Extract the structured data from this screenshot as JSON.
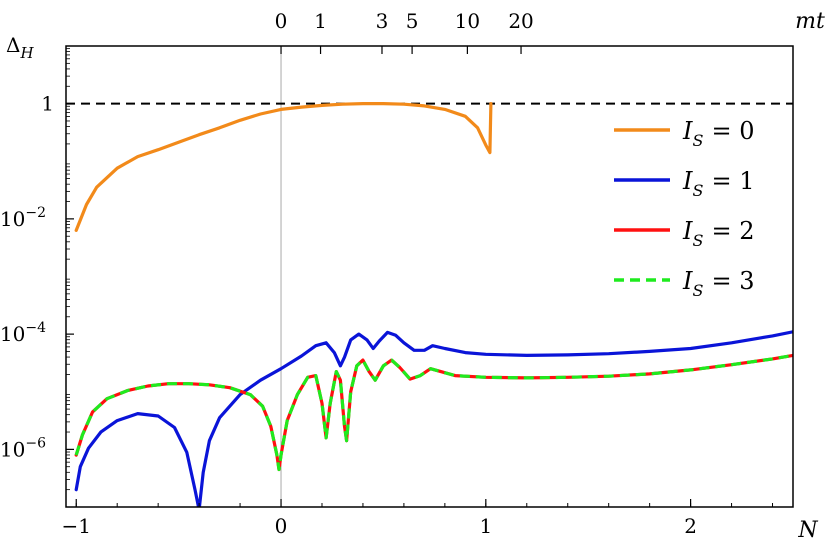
{
  "chart_data": {
    "type": "line",
    "title": "",
    "xlabel": "N",
    "ylabel": "Δ_H",
    "top_axis_label": "mt",
    "xlim": [
      -1.05,
      2.5
    ],
    "ylim_log10": [
      -7,
      1
    ],
    "y_scale": "log",
    "grid": false,
    "legend_position": "top-right",
    "x_ticks": [
      {
        "value": -1,
        "label": "−1"
      },
      {
        "value": 0,
        "label": "0"
      },
      {
        "value": 1,
        "label": "1"
      },
      {
        "value": 2,
        "label": "2"
      }
    ],
    "y_ticks": [
      {
        "exp": 0,
        "label": "1"
      },
      {
        "exp": -2,
        "label": "10",
        "sup": "−2"
      },
      {
        "exp": -4,
        "label": "10",
        "sup": "−4"
      },
      {
        "exp": -6,
        "label": "10",
        "sup": "−6"
      }
    ],
    "top_ticks": [
      {
        "N": 0.0,
        "label": "0"
      },
      {
        "N": 0.193,
        "label": "1"
      },
      {
        "N": 0.493,
        "label": "3"
      },
      {
        "N": 0.64,
        "label": "5"
      },
      {
        "N": 0.91,
        "label": "10"
      },
      {
        "N": 1.172,
        "label": "20"
      }
    ],
    "reference_line": {
      "y_log10": 0,
      "style": "dashed"
    },
    "series": [
      {
        "name": "I_S = 0",
        "legend_label": "I",
        "legend_sub": "S",
        "legend_value": "= 0",
        "color": "#f28a1a",
        "style": "solid",
        "points": [
          [
            -1.0,
            -2.2
          ],
          [
            -0.95,
            -1.75
          ],
          [
            -0.9,
            -1.45
          ],
          [
            -0.8,
            -1.12
          ],
          [
            -0.7,
            -0.92
          ],
          [
            -0.6,
            -0.8
          ],
          [
            -0.5,
            -0.67
          ],
          [
            -0.4,
            -0.54
          ],
          [
            -0.3,
            -0.42
          ],
          [
            -0.2,
            -0.29
          ],
          [
            -0.1,
            -0.18
          ],
          [
            0.0,
            -0.1
          ],
          [
            0.1,
            -0.06
          ],
          [
            0.2,
            -0.03
          ],
          [
            0.3,
            -0.01
          ],
          [
            0.4,
            0.0
          ],
          [
            0.5,
            0.0
          ],
          [
            0.6,
            -0.01
          ],
          [
            0.7,
            -0.04
          ],
          [
            0.8,
            -0.1
          ],
          [
            0.9,
            -0.22
          ],
          [
            0.96,
            -0.42
          ],
          [
            1.0,
            -0.72
          ],
          [
            1.02,
            -0.85
          ],
          [
            1.025,
            0.0
          ]
        ]
      },
      {
        "name": "I_S = 1",
        "legend_label": "I",
        "legend_sub": "S",
        "legend_value": "= 1",
        "color": "#0a14d8",
        "style": "solid",
        "points": [
          [
            -1.0,
            -6.7
          ],
          [
            -0.98,
            -6.3
          ],
          [
            -0.94,
            -5.98
          ],
          [
            -0.88,
            -5.7
          ],
          [
            -0.8,
            -5.5
          ],
          [
            -0.7,
            -5.38
          ],
          [
            -0.6,
            -5.42
          ],
          [
            -0.52,
            -5.62
          ],
          [
            -0.46,
            -6.05
          ],
          [
            -0.42,
            -6.7
          ],
          [
            -0.4,
            -7.05
          ],
          [
            -0.38,
            -6.4
          ],
          [
            -0.35,
            -5.85
          ],
          [
            -0.3,
            -5.45
          ],
          [
            -0.2,
            -5.05
          ],
          [
            -0.1,
            -4.8
          ],
          [
            0.0,
            -4.6
          ],
          [
            0.1,
            -4.38
          ],
          [
            0.17,
            -4.2
          ],
          [
            0.22,
            -4.15
          ],
          [
            0.26,
            -4.32
          ],
          [
            0.29,
            -4.55
          ],
          [
            0.31,
            -4.4
          ],
          [
            0.34,
            -4.1
          ],
          [
            0.38,
            -4.0
          ],
          [
            0.42,
            -4.1
          ],
          [
            0.45,
            -4.25
          ],
          [
            0.48,
            -4.12
          ],
          [
            0.52,
            -3.97
          ],
          [
            0.56,
            -4.02
          ],
          [
            0.6,
            -4.15
          ],
          [
            0.65,
            -4.28
          ],
          [
            0.7,
            -4.28
          ],
          [
            0.74,
            -4.2
          ],
          [
            0.8,
            -4.25
          ],
          [
            0.9,
            -4.32
          ],
          [
            1.0,
            -4.35
          ],
          [
            1.2,
            -4.37
          ],
          [
            1.4,
            -4.36
          ],
          [
            1.6,
            -4.34
          ],
          [
            1.8,
            -4.3
          ],
          [
            2.0,
            -4.25
          ],
          [
            2.2,
            -4.15
          ],
          [
            2.4,
            -4.03
          ],
          [
            2.5,
            -3.96
          ]
        ]
      },
      {
        "name": "I_S = 2",
        "legend_label": "I",
        "legend_sub": "S",
        "legend_value": "= 2",
        "color": "#ff1010",
        "style": "solid",
        "points": [
          [
            -1.0,
            -6.1
          ],
          [
            -0.97,
            -5.75
          ],
          [
            -0.92,
            -5.35
          ],
          [
            -0.85,
            -5.12
          ],
          [
            -0.75,
            -4.98
          ],
          [
            -0.65,
            -4.9
          ],
          [
            -0.55,
            -4.86
          ],
          [
            -0.45,
            -4.86
          ],
          [
            -0.35,
            -4.88
          ],
          [
            -0.25,
            -4.93
          ],
          [
            -0.15,
            -5.05
          ],
          [
            -0.09,
            -5.25
          ],
          [
            -0.05,
            -5.6
          ],
          [
            -0.02,
            -6.1
          ],
          [
            -0.01,
            -6.35
          ],
          [
            0.0,
            -6.1
          ],
          [
            0.03,
            -5.5
          ],
          [
            0.08,
            -5.05
          ],
          [
            0.13,
            -4.75
          ],
          [
            0.17,
            -4.72
          ],
          [
            0.2,
            -5.2
          ],
          [
            0.22,
            -5.8
          ],
          [
            0.24,
            -5.2
          ],
          [
            0.27,
            -4.65
          ],
          [
            0.29,
            -4.8
          ],
          [
            0.31,
            -5.6
          ],
          [
            0.32,
            -5.85
          ],
          [
            0.34,
            -5.0
          ],
          [
            0.37,
            -4.55
          ],
          [
            0.4,
            -4.45
          ],
          [
            0.43,
            -4.65
          ],
          [
            0.46,
            -4.8
          ],
          [
            0.5,
            -4.55
          ],
          [
            0.54,
            -4.45
          ],
          [
            0.58,
            -4.58
          ],
          [
            0.63,
            -4.78
          ],
          [
            0.68,
            -4.72
          ],
          [
            0.73,
            -4.6
          ],
          [
            0.78,
            -4.65
          ],
          [
            0.85,
            -4.72
          ],
          [
            1.0,
            -4.75
          ],
          [
            1.2,
            -4.76
          ],
          [
            1.4,
            -4.75
          ],
          [
            1.6,
            -4.73
          ],
          [
            1.8,
            -4.69
          ],
          [
            2.0,
            -4.62
          ],
          [
            2.2,
            -4.53
          ],
          [
            2.4,
            -4.43
          ],
          [
            2.5,
            -4.37
          ]
        ]
      },
      {
        "name": "I_S = 3",
        "legend_label": "I",
        "legend_sub": "S",
        "legend_value": "= 3",
        "color": "#1eeb1e",
        "style": "dashed",
        "points": [
          [
            -1.0,
            -6.1
          ],
          [
            -0.97,
            -5.75
          ],
          [
            -0.92,
            -5.35
          ],
          [
            -0.85,
            -5.12
          ],
          [
            -0.75,
            -4.98
          ],
          [
            -0.65,
            -4.9
          ],
          [
            -0.55,
            -4.86
          ],
          [
            -0.45,
            -4.86
          ],
          [
            -0.35,
            -4.88
          ],
          [
            -0.25,
            -4.93
          ],
          [
            -0.15,
            -5.05
          ],
          [
            -0.09,
            -5.25
          ],
          [
            -0.05,
            -5.6
          ],
          [
            -0.02,
            -6.1
          ],
          [
            -0.01,
            -6.35
          ],
          [
            0.0,
            -6.1
          ],
          [
            0.03,
            -5.5
          ],
          [
            0.08,
            -5.05
          ],
          [
            0.13,
            -4.75
          ],
          [
            0.17,
            -4.72
          ],
          [
            0.2,
            -5.2
          ],
          [
            0.22,
            -5.8
          ],
          [
            0.24,
            -5.2
          ],
          [
            0.27,
            -4.65
          ],
          [
            0.29,
            -4.8
          ],
          [
            0.31,
            -5.6
          ],
          [
            0.32,
            -5.85
          ],
          [
            0.34,
            -5.0
          ],
          [
            0.37,
            -4.55
          ],
          [
            0.4,
            -4.45
          ],
          [
            0.43,
            -4.65
          ],
          [
            0.46,
            -4.8
          ],
          [
            0.5,
            -4.55
          ],
          [
            0.54,
            -4.45
          ],
          [
            0.58,
            -4.58
          ],
          [
            0.63,
            -4.78
          ],
          [
            0.68,
            -4.72
          ],
          [
            0.73,
            -4.6
          ],
          [
            0.78,
            -4.65
          ],
          [
            0.85,
            -4.72
          ],
          [
            1.0,
            -4.75
          ],
          [
            1.2,
            -4.76
          ],
          [
            1.4,
            -4.75
          ],
          [
            1.6,
            -4.73
          ],
          [
            1.8,
            -4.69
          ],
          [
            2.0,
            -4.62
          ],
          [
            2.2,
            -4.53
          ],
          [
            2.4,
            -4.43
          ],
          [
            2.5,
            -4.37
          ]
        ]
      }
    ]
  }
}
